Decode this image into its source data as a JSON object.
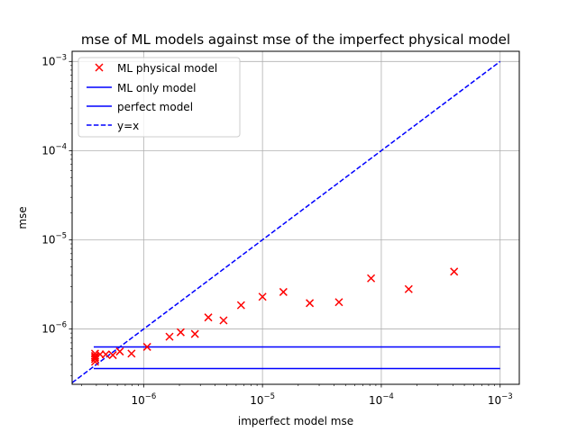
{
  "chart_data": {
    "type": "scatter",
    "title": "mse of ML models against mse of the imperfect physical model",
    "xlabel": "imperfect model mse",
    "ylabel": "mse",
    "xscale": "log",
    "yscale": "log",
    "xlim": [
      2.5e-07,
      0.00145
    ],
    "ylim": [
      2.4e-07,
      0.0013
    ],
    "grid": true,
    "legend_position": "top-left",
    "x_ticks": [
      {
        "value": 1e-06,
        "base": "10",
        "exp": "−6"
      },
      {
        "value": 1e-05,
        "base": "10",
        "exp": "−5"
      },
      {
        "value": 0.0001,
        "base": "10",
        "exp": "−4"
      },
      {
        "value": 0.001,
        "base": "10",
        "exp": "−3"
      }
    ],
    "y_ticks": [
      {
        "value": 1e-06,
        "base": "10",
        "exp": "−6"
      },
      {
        "value": 1e-05,
        "base": "10",
        "exp": "−5"
      },
      {
        "value": 0.0001,
        "base": "10",
        "exp": "−4"
      },
      {
        "value": 0.001,
        "base": "10",
        "exp": "−3"
      }
    ],
    "scatter": {
      "name": "ML physical model",
      "color": "#ff0000",
      "marker": "x",
      "points": [
        [
          3.9e-07,
          4.3e-07
        ],
        [
          3.9e-07,
          4.6e-07
        ],
        [
          3.9e-07,
          4.8e-07
        ],
        [
          3.9e-07,
          5e-07
        ],
        [
          3.9e-07,
          5.3e-07
        ],
        [
          4.3e-07,
          5.2e-07
        ],
        [
          4.8e-07,
          5.2e-07
        ],
        [
          5.5e-07,
          5.1e-07
        ],
        [
          6.3e-07,
          5.6e-07
        ],
        [
          7.9e-07,
          5.3e-07
        ],
        [
          1.07e-06,
          6.3e-07
        ],
        [
          1.65e-06,
          8.2e-07
        ],
        [
          2.05e-06,
          9.2e-07
        ],
        [
          2.7e-06,
          8.8e-07
        ],
        [
          3.5e-06,
          1.35e-06
        ],
        [
          4.7e-06,
          1.25e-06
        ],
        [
          6.6e-06,
          1.85e-06
        ],
        [
          1e-05,
          2.3e-06
        ],
        [
          1.5e-05,
          2.6e-06
        ],
        [
          2.5e-05,
          1.95e-06
        ],
        [
          4.4e-05,
          2e-06
        ],
        [
          8.2e-05,
          3.7e-06
        ],
        [
          0.00017,
          2.8e-06
        ],
        [
          0.00041,
          4.4e-06
        ]
      ]
    },
    "lines": [
      {
        "name": "ML only model",
        "color": "#0000ff",
        "style": "solid",
        "y": 6.3e-07,
        "x": [
          3.8e-07,
          0.001
        ]
      },
      {
        "name": "perfect model",
        "color": "#0000ff",
        "style": "solid",
        "y": 3.6e-07,
        "x": [
          3.8e-07,
          0.001
        ]
      },
      {
        "name": "y=x",
        "color": "#0000ff",
        "style": "dashed",
        "diagonal": true,
        "x": [
          2.5e-07,
          0.001
        ]
      }
    ]
  }
}
